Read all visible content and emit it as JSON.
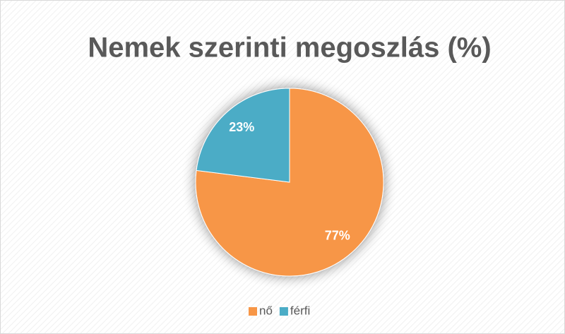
{
  "chart_data": {
    "type": "pie",
    "title": "Nemek szerinti megoszlás (%)",
    "categories": [
      "nő",
      "férfi"
    ],
    "values": [
      77,
      23
    ],
    "value_labels": [
      "77%",
      "23%"
    ],
    "colors": [
      "#f79646",
      "#4bacc6"
    ],
    "legend": "bottom"
  }
}
